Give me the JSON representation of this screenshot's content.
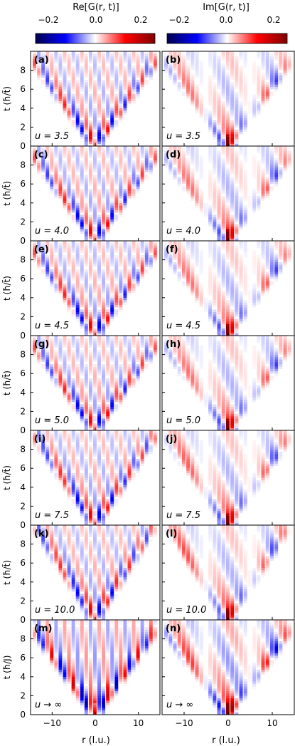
{
  "chart_data": {
    "type": "heatmap",
    "colormap": "seismic",
    "colorbars": [
      {
        "title": "Re[G(r, t)]",
        "ticks": [
          "−0.2",
          "0.0",
          "0.2"
        ],
        "range": [
          -0.25,
          0.25
        ]
      },
      {
        "title": "Im[G(r, t)]",
        "ticks": [
          "−0.2",
          "0.0",
          "0.2"
        ],
        "range": [
          -0.25,
          0.25
        ]
      }
    ],
    "xlabel": "r (l.u.)",
    "xlim": [
      -15,
      15
    ],
    "xticks": [
      "−10",
      "0",
      "10"
    ],
    "ylim": [
      0,
      10
    ],
    "yticks": [
      "0",
      "2",
      "4",
      "6",
      "8"
    ],
    "rows": [
      {
        "ylabel": "t (ħ/t̃)",
        "panels": [
          {
            "tag": "(a)",
            "u": "u = 3.5"
          },
          {
            "tag": "(b)",
            "u": "u = 3.5"
          }
        ]
      },
      {
        "ylabel": "t (ħ/t̃)",
        "panels": [
          {
            "tag": "(c)",
            "u": "u = 4.0"
          },
          {
            "tag": "(d)",
            "u": "u = 4.0"
          }
        ]
      },
      {
        "ylabel": "t (ħ/t̃)",
        "panels": [
          {
            "tag": "(e)",
            "u": "u = 4.5"
          },
          {
            "tag": "(f)",
            "u": "u = 4.5"
          }
        ]
      },
      {
        "ylabel": "t (ħ/t̃)",
        "panels": [
          {
            "tag": "(g)",
            "u": "u = 5.0"
          },
          {
            "tag": "(h)",
            "u": "u = 5.0"
          }
        ]
      },
      {
        "ylabel": "t (ħ/t̃)",
        "panels": [
          {
            "tag": "(i)",
            "u": "u = 7.5"
          },
          {
            "tag": "(j)",
            "u": "u = 7.5"
          }
        ]
      },
      {
        "ylabel": "t (ħ/t̃)",
        "panels": [
          {
            "tag": "(k)",
            "u": "u = 10.0"
          },
          {
            "tag": "(l)",
            "u": "u = 10.0"
          }
        ]
      },
      {
        "ylabel": "t (ħ/J)",
        "panels": [
          {
            "tag": "(m)",
            "u": "u → ∞"
          },
          {
            "tag": "(n)",
            "u": "u → ∞"
          }
        ]
      }
    ],
    "light_cone_velocity": [
      1.6,
      1.6,
      1.6,
      1.6,
      1.5,
      1.4,
      1.6
    ],
    "peak_amplitude": [
      0.25,
      0.25,
      0.25,
      0.25,
      0.25,
      0.25,
      0.25
    ]
  },
  "colors": {
    "negative": "#00007f",
    "zero": "#ffffff",
    "positive": "#7f0000"
  }
}
